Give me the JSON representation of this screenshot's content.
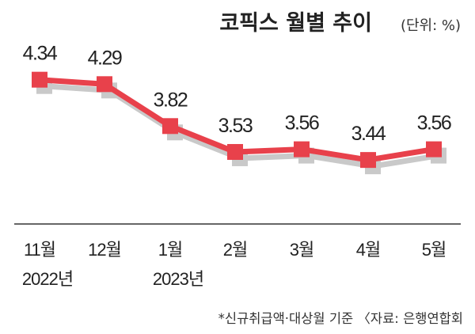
{
  "chart_data": {
    "type": "line",
    "title": "코픽스 월별 추이",
    "unit": "(단위: %)",
    "categories": [
      "11월",
      "12월",
      "1월",
      "2월",
      "3월",
      "4월",
      "5월"
    ],
    "year_labels": [
      "2022년",
      "",
      "2023년",
      "",
      "",
      "",
      ""
    ],
    "values": [
      4.34,
      4.29,
      3.82,
      3.53,
      3.56,
      3.44,
      3.56
    ],
    "value_labels": [
      "4.34",
      "4.29",
      "3.82",
      "3.53",
      "3.56",
      "3.44",
      "3.56"
    ],
    "note": "*신규취급액·대상월 기준 〈자료: 은행연합회",
    "ylim": [
      2.9,
      4.55
    ],
    "grid": false,
    "line_color": "#e8414b",
    "marker_color": "#e8414b",
    "shadow_color": "#c9c9c9"
  }
}
